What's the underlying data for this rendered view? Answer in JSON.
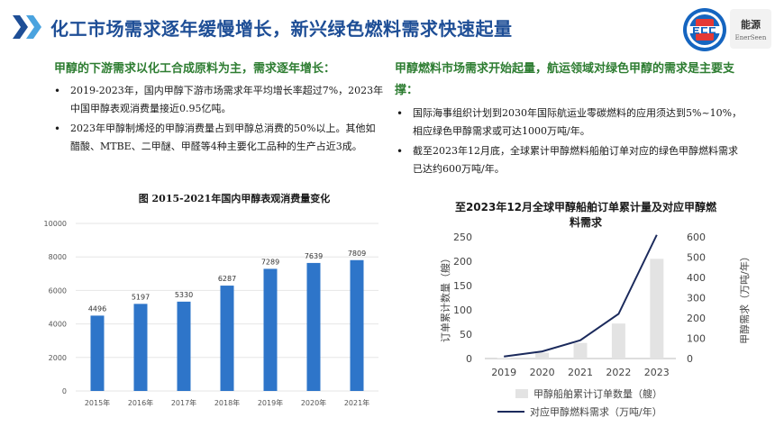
{
  "header": {
    "title": "化工市场需求逐年缓慢增长，新兴绿色燃料需求快速起量",
    "logo_right_cn": "能源",
    "logo_right_en": "EnerSeen"
  },
  "left": {
    "title": "甲醇的下游需求以化工合成原料为主，需求逐年增长：",
    "bullets": [
      "2019-2023年，国内甲醇下游市场需求年平均增长率超过7%，2023年中国甲醇表观消费量接近0.95亿吨。",
      "2023年甲醇制烯烃的甲醇消费量占到甲醇总消费的50%以上。其他如醋酸、MTBE、二甲醚、甲醛等4种主要化工品种的生产占近3成。"
    ]
  },
  "right": {
    "title": "甲醇燃料市场需求开始起量，航运领域对绿色甲醇的需求是主要支撑：",
    "bullets": [
      "国际海事组织计划到2030年国际航运业零碳燃料的应用须达到5%~10%，相应绿色甲醇需求或可达1000万吨/年。",
      "截至2023年12月底，全球累计甲醇燃料船舶订单对应的绿色甲醇燃料需求已达约600万吨/年。"
    ]
  },
  "chart_data": [
    {
      "type": "bar",
      "title": "图 2015-2021年国内甲醇表观消费量变化",
      "categories": [
        "2015年",
        "2016年",
        "2017年",
        "2018年",
        "2019年",
        "2020年",
        "2021年"
      ],
      "values": [
        4496,
        5197,
        5330,
        6287,
        7289,
        7639,
        7809
      ],
      "ylim": [
        0,
        10000
      ],
      "yticks": [
        0,
        2000,
        4000,
        6000,
        8000,
        10000
      ],
      "color": "#2e75c9",
      "grid": true
    },
    {
      "type": "bar+line",
      "title": "至2023年12月全球甲醇船舶订单累计量及对应甲醇燃料需求",
      "categories": [
        "2019",
        "2020",
        "2021",
        "2022",
        "2023"
      ],
      "bar_series": {
        "name": "甲醇船舶累计订单数量（艘）",
        "values": [
          1,
          12,
          32,
          72,
          205
        ],
        "color": "#e3e3e3"
      },
      "line_series": {
        "name": "对应甲醇燃料需求（万吨/年）",
        "values": [
          10,
          35,
          90,
          220,
          610
        ],
        "color": "#1b2a5c"
      },
      "ylabel_left": "订单累计数量（艘）",
      "ylabel_right": "甲醇需求（万吨/年）",
      "ylim_left": [
        0,
        250
      ],
      "yticks_left": [
        0,
        50,
        100,
        150,
        200,
        250
      ],
      "ylim_right": [
        0,
        600
      ],
      "yticks_right": [
        0,
        100,
        200,
        300,
        400,
        500,
        600
      ]
    }
  ]
}
